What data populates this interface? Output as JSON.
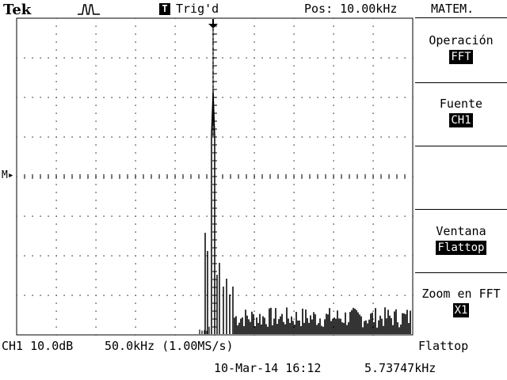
{
  "header": {
    "brand": "Tek",
    "trigger_badge": "T",
    "trigger_status": "Trig'd",
    "position": "Pos: 10.00kHz"
  },
  "menu": {
    "title": "MATEM.",
    "items": [
      {
        "label": "Operación",
        "value": "FFT"
      },
      {
        "label": "Fuente",
        "value": "CH1"
      },
      {
        "label": "",
        "value": ""
      },
      {
        "label": "Ventana",
        "value": "Flattop"
      },
      {
        "label": "Zoom en FFT",
        "value": "X1"
      }
    ]
  },
  "screen": {
    "marker": "M▸"
  },
  "footer": {
    "channel_scale": "CH1 10.0dB",
    "freq_scale": "50.0kHz (1.00MS/s)",
    "window": "Flattop",
    "datetime": "10-Mar-14 16:12",
    "frequency": "5.73747kHz"
  },
  "chart_data": {
    "type": "line",
    "title": "",
    "xlabel": "",
    "ylabel": "",
    "grid": true,
    "peak_frequency": "5.73747kHz",
    "description_units": "divisions",
    "xlim": [
      0,
      10
    ],
    "ylim": [
      0,
      8
    ]
  },
  "colors": {
    "background": "#ffffff",
    "trace": "#000000",
    "grid": "#000000"
  }
}
